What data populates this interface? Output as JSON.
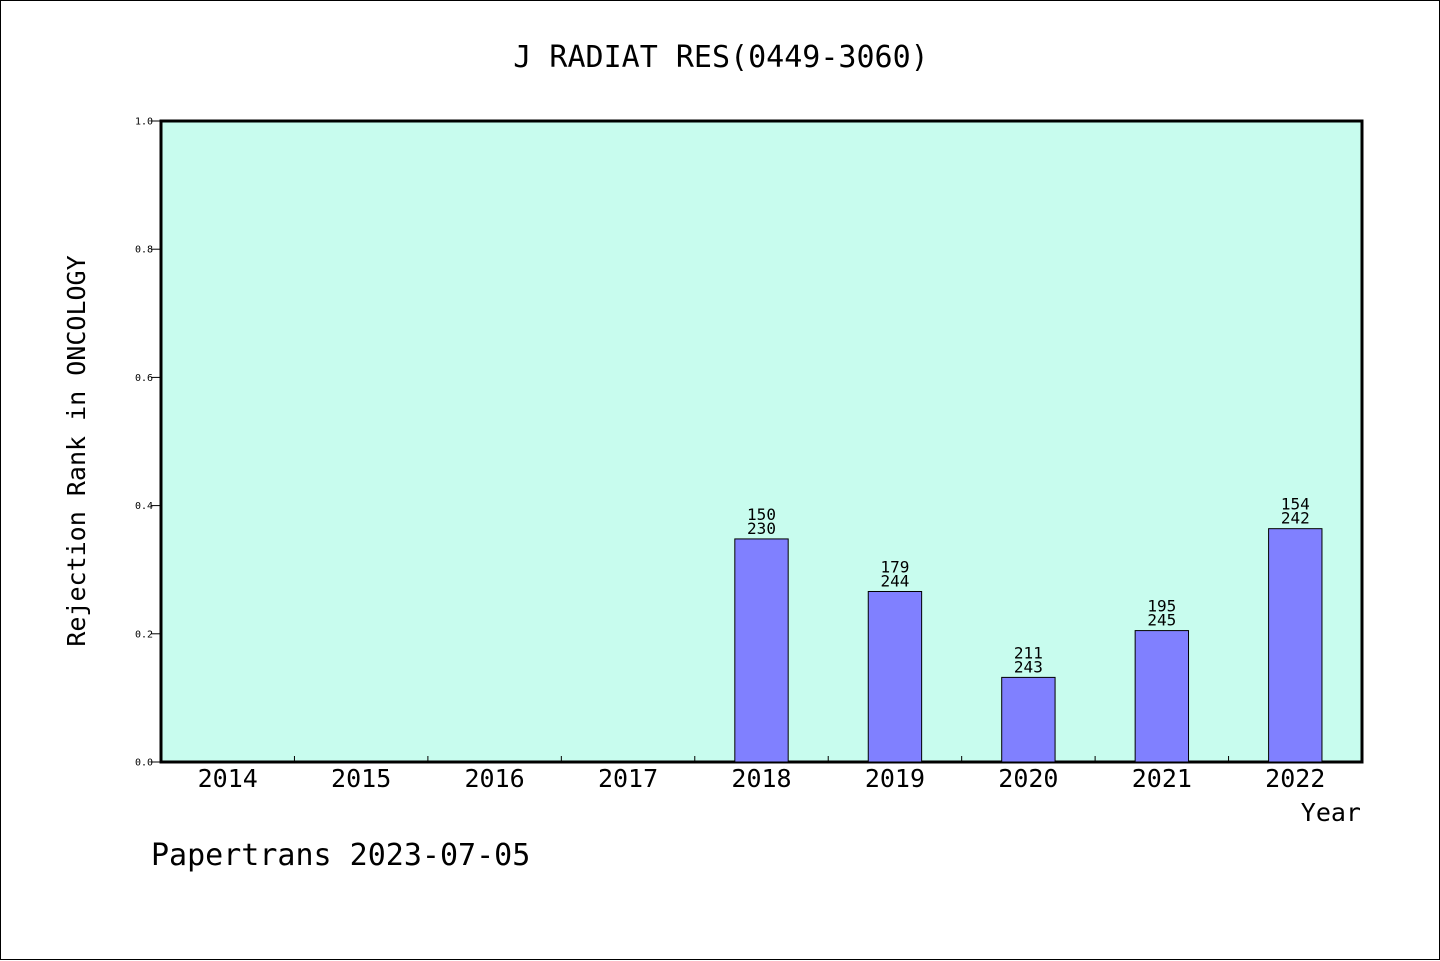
{
  "chart_data": {
    "type": "bar",
    "title": "J RADIAT RES(0449-3060)",
    "xlabel": "Year",
    "ylabel": "Rejection Rank in ONCOLOGY",
    "categories": [
      "2014",
      "2015",
      "2016",
      "2017",
      "2018",
      "2019",
      "2020",
      "2021",
      "2022"
    ],
    "values": [
      null,
      null,
      null,
      null,
      0.348,
      0.266,
      0.132,
      0.205,
      0.364
    ],
    "bar_labels": [
      null,
      null,
      null,
      null,
      {
        "rank": "150",
        "total": "230"
      },
      {
        "rank": "179",
        "total": "244"
      },
      {
        "rank": "211",
        "total": "243"
      },
      {
        "rank": "195",
        "total": "245"
      },
      {
        "rank": "154",
        "total": "242"
      }
    ],
    "ylim": [
      0,
      1.0
    ],
    "yticks": [
      "0.0",
      "0.2",
      "0.4",
      "0.6",
      "0.8",
      "1.0"
    ],
    "grid": false,
    "colors": {
      "plot_background": "#c8fcee",
      "bar_fill": "#8080ff",
      "bar_stroke": "#000000"
    }
  },
  "footer": {
    "text": "Papertrans 2023-07-05"
  }
}
